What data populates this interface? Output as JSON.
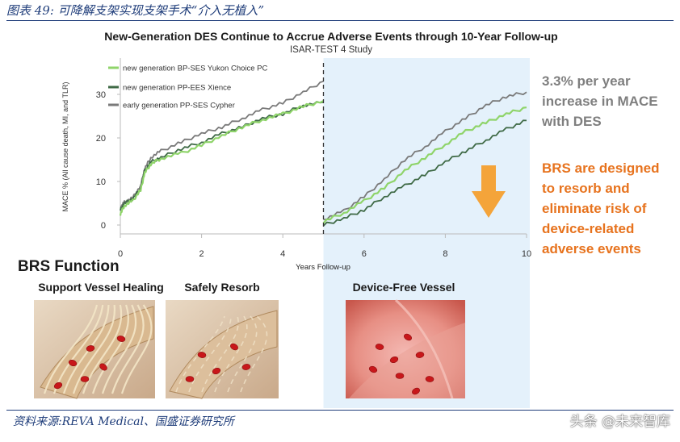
{
  "figure_caption": "图表 49: 可降解支架实现支架手术“介入无植入”",
  "source_note": "资料来源:REVA Medical、国盛证券研究所",
  "watermark": "头条 @未来智库",
  "chart_data": {
    "type": "line",
    "title": "New-Generation DES Continue to Accrue Adverse Events through 10-Year Follow-up",
    "subtitle": "ISAR-TEST 4 Study",
    "xlabel": "Years Follow-up",
    "ylabel": "MACE % (All cause death, MI, and TLR)",
    "xlim": [
      0,
      10
    ],
    "ylim": [
      0,
      33
    ],
    "x_ticks": [
      "0",
      "2",
      "4",
      "6",
      "8",
      "10"
    ],
    "y_ticks": [
      "0",
      "10",
      "20",
      "30"
    ],
    "legend_position": "top-left",
    "divider_x": 5,
    "highlight_x_from": 5,
    "series": [
      {
        "name": "new generation BP-SES Yukon Choice PC",
        "color": "#8fd46a",
        "segments": [
          [
            [
              0,
              2.5
            ],
            [
              0.1,
              4.5
            ],
            [
              0.3,
              5.5
            ],
            [
              0.5,
              8
            ],
            [
              0.6,
              12
            ],
            [
              0.75,
              14
            ],
            [
              1,
              15.3
            ],
            [
              1.5,
              16.5
            ],
            [
              2,
              18.3
            ],
            [
              2.5,
              20.5
            ],
            [
              3,
              22.5
            ],
            [
              3.5,
              24.2
            ],
            [
              4,
              25.5
            ],
            [
              4.5,
              27.2
            ],
            [
              5,
              28.5
            ]
          ],
          [
            [
              5,
              0.8
            ],
            [
              5.5,
              2.8
            ],
            [
              6,
              5.5
            ],
            [
              6.5,
              8.5
            ],
            [
              7,
              12.5
            ],
            [
              7.5,
              15.5
            ],
            [
              8,
              18.5
            ],
            [
              8.5,
              21.5
            ],
            [
              9,
              23.5
            ],
            [
              9.5,
              25.5
            ],
            [
              10,
              27
            ]
          ]
        ]
      },
      {
        "name": "new generation PP-EES Xience",
        "color": "#3f6a46",
        "segments": [
          [
            [
              0,
              3.5
            ],
            [
              0.1,
              5
            ],
            [
              0.3,
              6
            ],
            [
              0.5,
              8.5
            ],
            [
              0.6,
              12.5
            ],
            [
              0.75,
              14.5
            ],
            [
              1,
              15.5
            ],
            [
              1.5,
              17.5
            ],
            [
              2,
              19
            ],
            [
              2.5,
              21
            ],
            [
              3,
              22.5
            ],
            [
              3.5,
              24.5
            ],
            [
              4,
              25.5
            ],
            [
              4.5,
              27.5
            ],
            [
              5,
              28.2
            ]
          ],
          [
            [
              5,
              0
            ],
            [
              5.5,
              1.5
            ],
            [
              6,
              3.5
            ],
            [
              6.5,
              6.5
            ],
            [
              7,
              9
            ],
            [
              7.5,
              11.5
            ],
            [
              8,
              14.5
            ],
            [
              8.5,
              17
            ],
            [
              9,
              19.5
            ],
            [
              9.5,
              22
            ],
            [
              10,
              24
            ]
          ]
        ]
      },
      {
        "name": "early generation PP-SES Cypher",
        "color": "#7a7a7a",
        "segments": [
          [
            [
              0,
              4
            ],
            [
              0.1,
              5.2
            ],
            [
              0.3,
              6.2
            ],
            [
              0.5,
              9
            ],
            [
              0.6,
              13
            ],
            [
              0.75,
              15.5
            ],
            [
              1,
              17
            ],
            [
              1.5,
              19
            ],
            [
              2,
              21
            ],
            [
              2.5,
              22.5
            ],
            [
              3,
              24.5
            ],
            [
              3.5,
              26.5
            ],
            [
              4,
              28
            ],
            [
              4.5,
              30.5
            ],
            [
              5,
              33
            ]
          ],
          [
            [
              5,
              1.3
            ],
            [
              5.5,
              3.2
            ],
            [
              6,
              6.5
            ],
            [
              6.5,
              10.5
            ],
            [
              7,
              15
            ],
            [
              7.5,
              18
            ],
            [
              8,
              21.5
            ],
            [
              8.5,
              24.5
            ],
            [
              9,
              27.5
            ],
            [
              9.5,
              29.5
            ],
            [
              10,
              30.5
            ]
          ]
        ]
      }
    ],
    "annotation_mace": "3.3% per year\nincrease in MACE\nwith DES",
    "annotation_brs": "BRS are designed\nto resorb and\neliminate risk of\ndevice-related\nadverse events",
    "arrow_color": "#f4a43a",
    "highlight_color": "#e4f1fb"
  },
  "brs": {
    "heading": "BRS Function",
    "panels": [
      {
        "label": "Support Vessel Healing",
        "scene": "vessel-with-scaffold"
      },
      {
        "label": "Safely Resorb",
        "scene": "vessel-resorbing-scaffold"
      },
      {
        "label": "Device-Free Vessel",
        "scene": "vessel-device-free"
      }
    ]
  }
}
